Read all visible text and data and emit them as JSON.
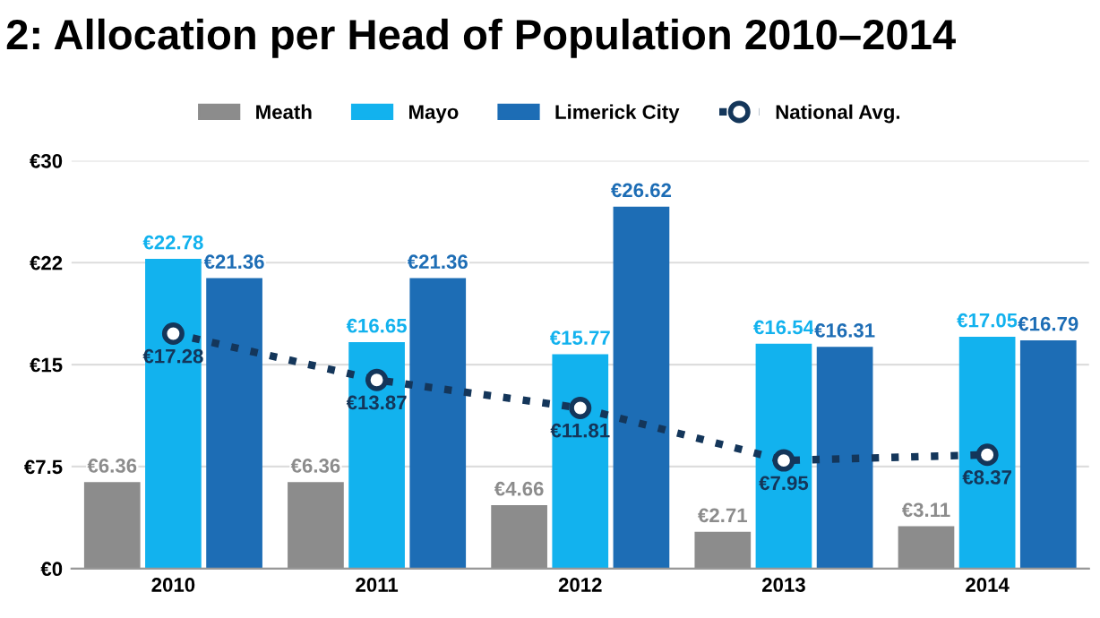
{
  "chart_data": {
    "type": "bar",
    "title": "2: Allocation per Head of Population 2010–2014",
    "categories": [
      "2010",
      "2011",
      "2012",
      "2013",
      "2014"
    ],
    "series": [
      {
        "name": "Meath",
        "color": "#8c8c8c",
        "values": [
          6.36,
          6.36,
          4.66,
          2.71,
          3.11
        ],
        "value_labels": [
          "€6.36",
          "€6.36",
          "€4.66",
          "€2.71",
          "€3.11"
        ]
      },
      {
        "name": "Mayo",
        "color": "#12b2ee",
        "values": [
          22.78,
          16.65,
          15.77,
          16.54,
          17.05
        ],
        "value_labels": [
          "€22.78",
          "€16.65",
          "€15.77",
          "€16.54",
          "€17.05"
        ]
      },
      {
        "name": "Limerick City",
        "color": "#1d6db5",
        "values": [
          21.36,
          21.36,
          26.62,
          16.31,
          16.79
        ],
        "value_labels": [
          "€21.36",
          "€21.36",
          "€26.62",
          "€16.31",
          "€16.79"
        ]
      },
      {
        "name": "National Avg.",
        "type": "line",
        "color": "#14365a",
        "marker": "circle",
        "line_style": "dotted",
        "values": [
          17.28,
          13.87,
          11.81,
          7.95,
          8.37
        ],
        "value_labels": [
          "€17.28",
          "€13.87",
          "€11.81",
          "€7.95",
          "€8.37"
        ]
      }
    ],
    "ylim": [
      0,
      30
    ],
    "yticks": [
      {
        "value": 0,
        "label": "€0"
      },
      {
        "value": 7.5,
        "label": "€7.5"
      },
      {
        "value": 15,
        "label": "€15"
      },
      {
        "value": 22.5,
        "label": "€22"
      },
      {
        "value": 30,
        "label": "€30"
      }
    ],
    "grid": "y",
    "legend": "top"
  }
}
